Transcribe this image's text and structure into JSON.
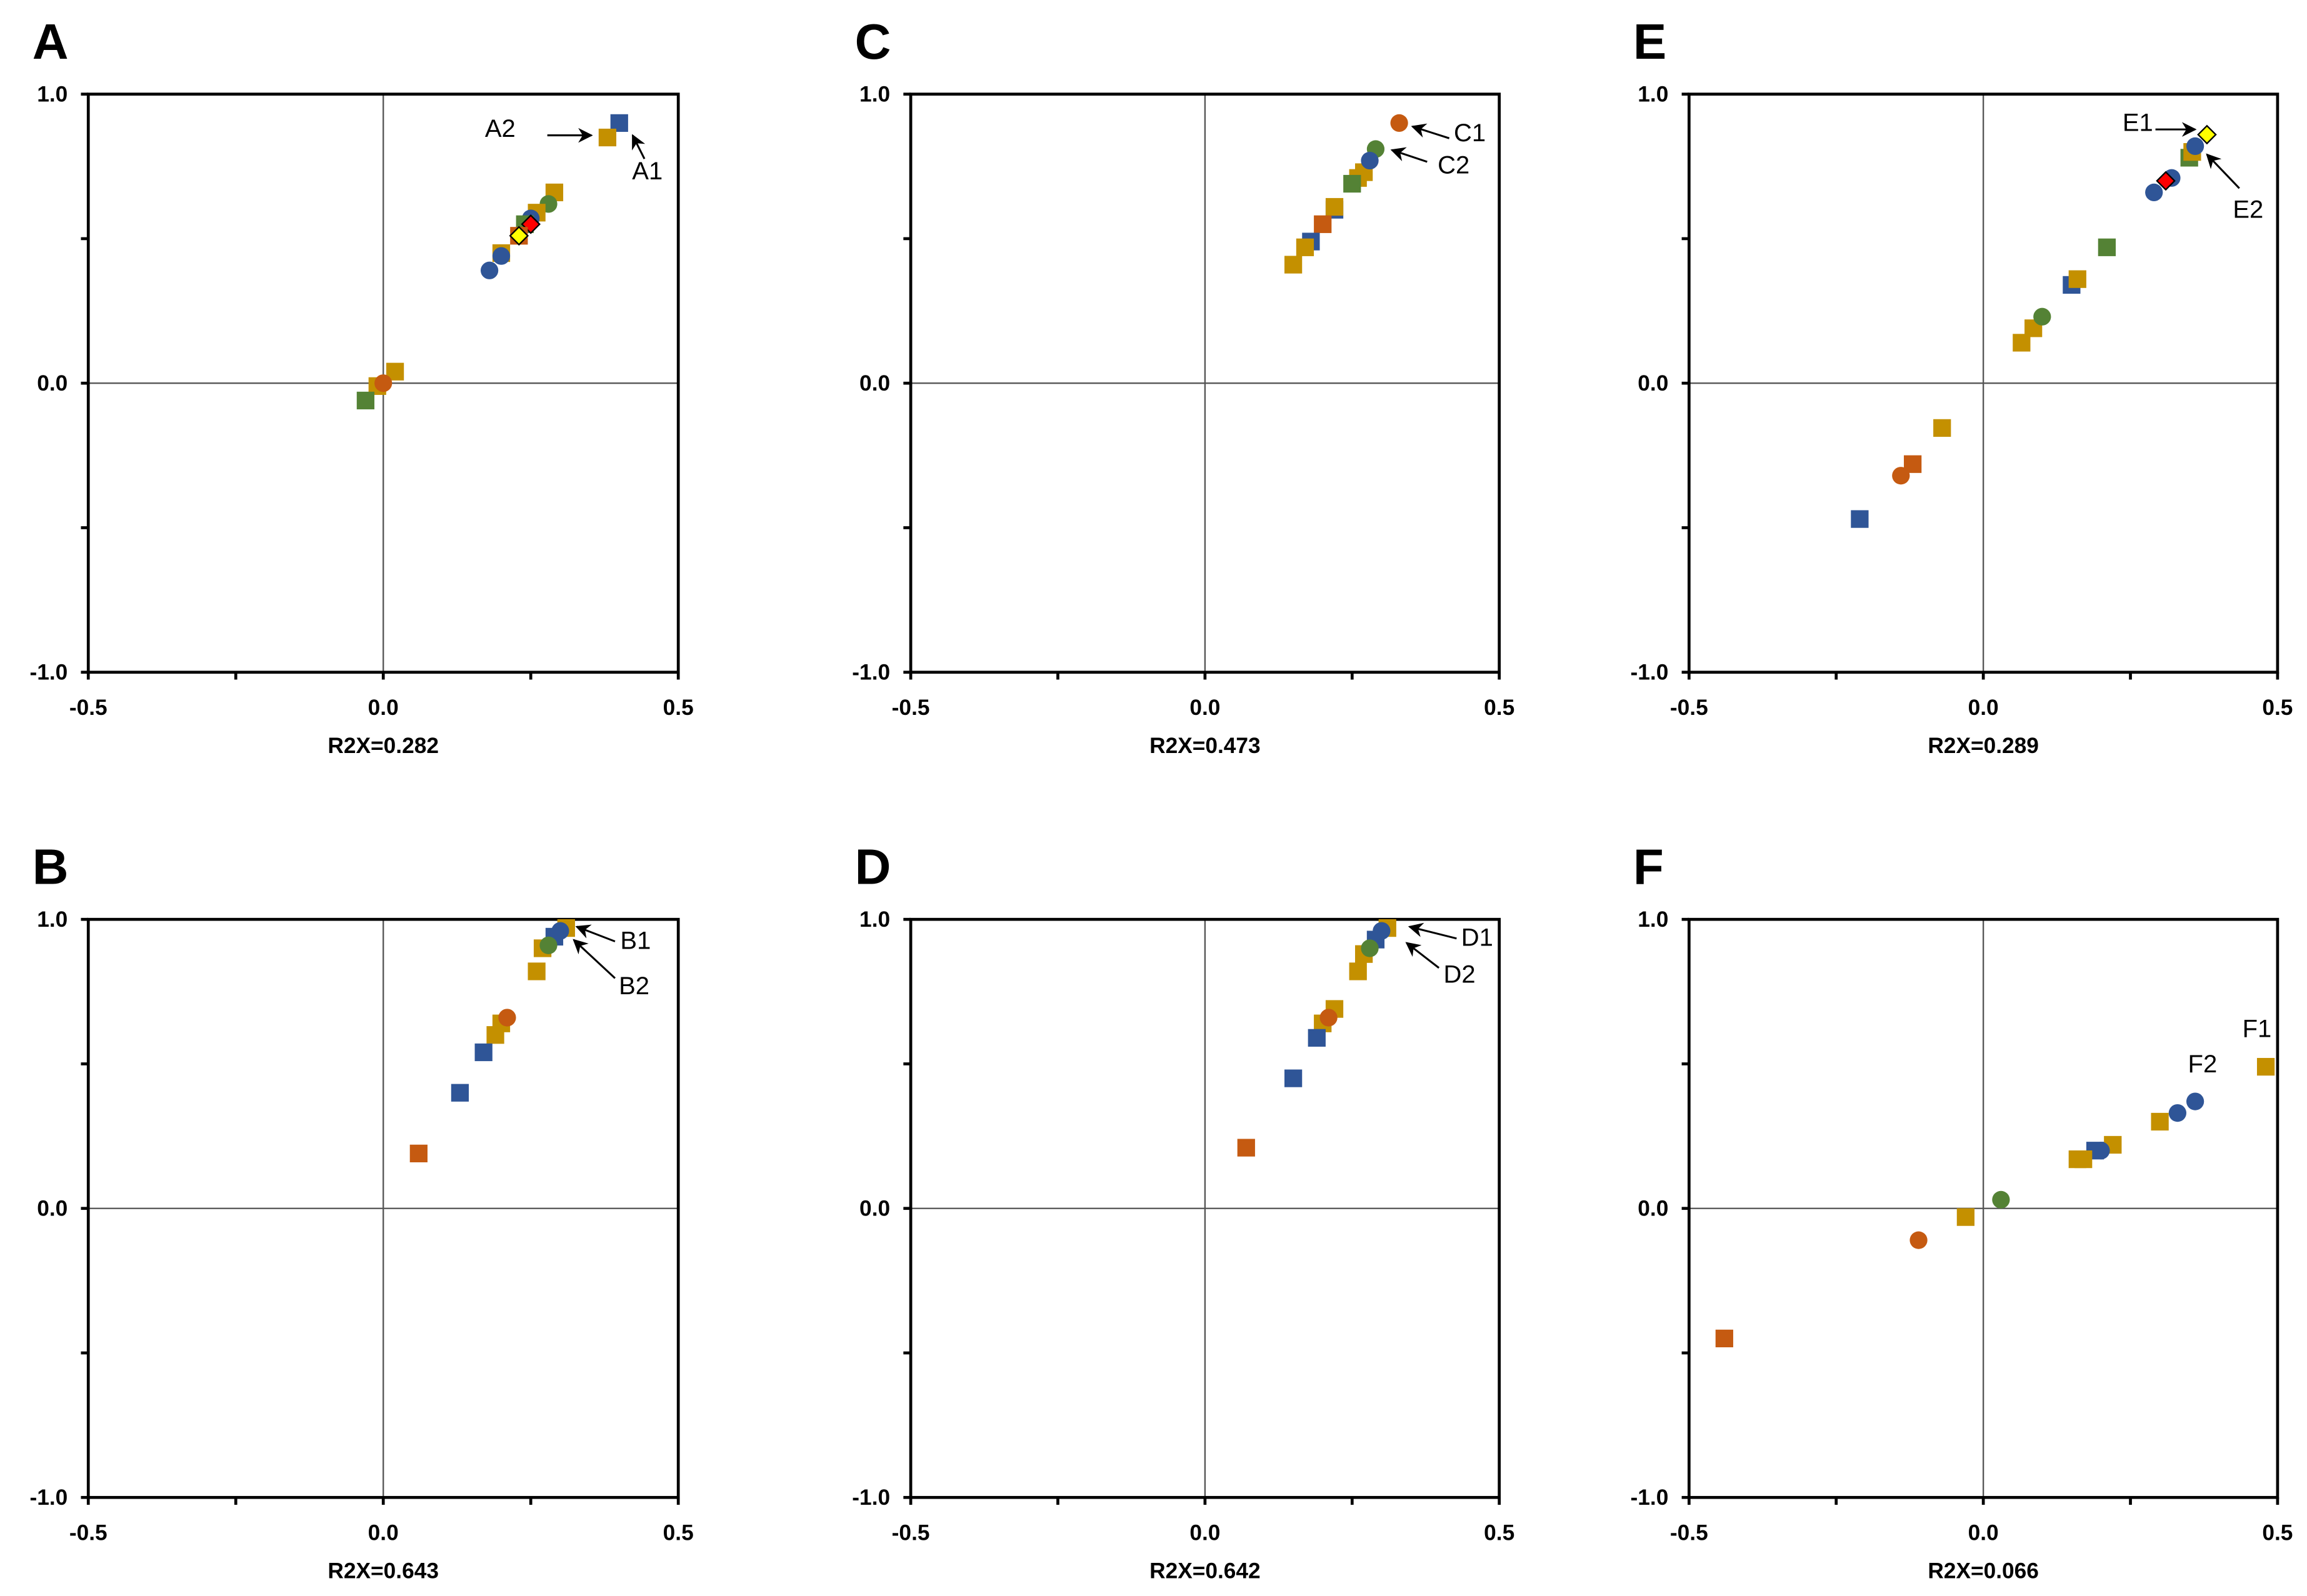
{
  "colors": {
    "blue": "#2F5597",
    "gold": "#C49000",
    "orange": "#C55A11",
    "green": "#548235",
    "red": "#FF0000",
    "yellow": "#FFFF00"
  },
  "chart_data": [
    {
      "type": "scatter",
      "panel": "A",
      "xlabel": "R2X=0.282",
      "xlim": [
        -0.5,
        0.5
      ],
      "ylim": [
        -1.0,
        1.0
      ],
      "xticks": [
        "-0.5",
        "0.0",
        "0.5"
      ],
      "yticks": [
        "1.0",
        "0.0",
        "-1.0"
      ],
      "points": [
        {
          "x": 0.4,
          "y": 0.9,
          "color": "blue",
          "shape": "square"
        },
        {
          "x": 0.38,
          "y": 0.85,
          "color": "gold",
          "shape": "square"
        },
        {
          "x": 0.29,
          "y": 0.66,
          "color": "gold",
          "shape": "square"
        },
        {
          "x": 0.28,
          "y": 0.62,
          "color": "green",
          "shape": "circle"
        },
        {
          "x": 0.26,
          "y": 0.59,
          "color": "gold",
          "shape": "square"
        },
        {
          "x": 0.25,
          "y": 0.57,
          "color": "blue",
          "shape": "circle"
        },
        {
          "x": 0.24,
          "y": 0.55,
          "color": "green",
          "shape": "square"
        },
        {
          "x": 0.25,
          "y": 0.55,
          "color": "red",
          "shape": "diamond"
        },
        {
          "x": 0.23,
          "y": 0.51,
          "color": "orange",
          "shape": "square"
        },
        {
          "x": 0.23,
          "y": 0.51,
          "color": "yellow",
          "shape": "diamond"
        },
        {
          "x": 0.2,
          "y": 0.45,
          "color": "gold",
          "shape": "square"
        },
        {
          "x": 0.2,
          "y": 0.44,
          "color": "blue",
          "shape": "circle"
        },
        {
          "x": 0.18,
          "y": 0.39,
          "color": "blue",
          "shape": "circle"
        },
        {
          "x": 0.02,
          "y": 0.04,
          "color": "gold",
          "shape": "square"
        },
        {
          "x": -0.01,
          "y": -0.01,
          "color": "gold",
          "shape": "square"
        },
        {
          "x": 0.0,
          "y": 0.0,
          "color": "orange",
          "shape": "circle"
        },
        {
          "x": -0.03,
          "y": -0.06,
          "color": "green",
          "shape": "square"
        }
      ],
      "annotations": [
        {
          "text": "A1"
        },
        {
          "text": "A2"
        }
      ]
    },
    {
      "type": "scatter",
      "panel": "B",
      "xlabel": "R2X=0.643",
      "xlim": [
        -0.5,
        0.5
      ],
      "ylim": [
        -1.0,
        1.0
      ],
      "xticks": [
        "-0.5",
        "0.0",
        "0.5"
      ],
      "yticks": [
        "1.0",
        "0.0",
        "-1.0"
      ],
      "points": [
        {
          "x": 0.31,
          "y": 0.97,
          "color": "gold",
          "shape": "square"
        },
        {
          "x": 0.3,
          "y": 0.96,
          "color": "blue",
          "shape": "circle"
        },
        {
          "x": 0.29,
          "y": 0.94,
          "color": "blue",
          "shape": "square"
        },
        {
          "x": 0.27,
          "y": 0.9,
          "color": "gold",
          "shape": "square"
        },
        {
          "x": 0.28,
          "y": 0.91,
          "color": "green",
          "shape": "circle"
        },
        {
          "x": 0.26,
          "y": 0.82,
          "color": "gold",
          "shape": "square"
        },
        {
          "x": 0.2,
          "y": 0.64,
          "color": "gold",
          "shape": "square"
        },
        {
          "x": 0.21,
          "y": 0.66,
          "color": "orange",
          "shape": "circle"
        },
        {
          "x": 0.19,
          "y": 0.6,
          "color": "gold",
          "shape": "square"
        },
        {
          "x": 0.17,
          "y": 0.54,
          "color": "blue",
          "shape": "square"
        },
        {
          "x": 0.13,
          "y": 0.4,
          "color": "blue",
          "shape": "square"
        },
        {
          "x": 0.06,
          "y": 0.19,
          "color": "orange",
          "shape": "square"
        }
      ],
      "annotations": [
        {
          "text": "B1"
        },
        {
          "text": "B2"
        }
      ]
    },
    {
      "type": "scatter",
      "panel": "C",
      "xlabel": "R2X=0.473",
      "xlim": [
        -0.5,
        0.5
      ],
      "ylim": [
        -1.0,
        1.0
      ],
      "xticks": [
        "-0.5",
        "0.0",
        "0.5"
      ],
      "yticks": [
        "1.0",
        "0.0",
        "-1.0"
      ],
      "points": [
        {
          "x": 0.33,
          "y": 0.9,
          "color": "orange",
          "shape": "circle"
        },
        {
          "x": 0.29,
          "y": 0.81,
          "color": "green",
          "shape": "circle"
        },
        {
          "x": 0.26,
          "y": 0.71,
          "color": "gold",
          "shape": "square"
        },
        {
          "x": 0.27,
          "y": 0.73,
          "color": "gold",
          "shape": "square"
        },
        {
          "x": 0.28,
          "y": 0.77,
          "color": "blue",
          "shape": "circle"
        },
        {
          "x": 0.25,
          "y": 0.69,
          "color": "green",
          "shape": "square"
        },
        {
          "x": 0.22,
          "y": 0.6,
          "color": "blue",
          "shape": "square"
        },
        {
          "x": 0.22,
          "y": 0.61,
          "color": "gold",
          "shape": "square"
        },
        {
          "x": 0.2,
          "y": 0.55,
          "color": "orange",
          "shape": "square"
        },
        {
          "x": 0.18,
          "y": 0.49,
          "color": "blue",
          "shape": "square"
        },
        {
          "x": 0.17,
          "y": 0.47,
          "color": "gold",
          "shape": "square"
        },
        {
          "x": 0.15,
          "y": 0.41,
          "color": "gold",
          "shape": "square"
        }
      ],
      "annotations": [
        {
          "text": "C1"
        },
        {
          "text": "C2"
        }
      ]
    },
    {
      "type": "scatter",
      "panel": "D",
      "xlabel": "R2X=0.642",
      "xlim": [
        -0.5,
        0.5
      ],
      "ylim": [
        -1.0,
        1.0
      ],
      "xticks": [
        "-0.5",
        "0.0",
        "0.5"
      ],
      "yticks": [
        "1.0",
        "0.0",
        "-1.0"
      ],
      "points": [
        {
          "x": 0.31,
          "y": 0.97,
          "color": "gold",
          "shape": "square"
        },
        {
          "x": 0.29,
          "y": 0.93,
          "color": "blue",
          "shape": "square"
        },
        {
          "x": 0.3,
          "y": 0.96,
          "color": "blue",
          "shape": "circle"
        },
        {
          "x": 0.27,
          "y": 0.88,
          "color": "gold",
          "shape": "square"
        },
        {
          "x": 0.28,
          "y": 0.9,
          "color": "green",
          "shape": "circle"
        },
        {
          "x": 0.26,
          "y": 0.82,
          "color": "gold",
          "shape": "square"
        },
        {
          "x": 0.22,
          "y": 0.69,
          "color": "gold",
          "shape": "square"
        },
        {
          "x": 0.2,
          "y": 0.64,
          "color": "gold",
          "shape": "square"
        },
        {
          "x": 0.21,
          "y": 0.66,
          "color": "orange",
          "shape": "circle"
        },
        {
          "x": 0.19,
          "y": 0.59,
          "color": "blue",
          "shape": "square"
        },
        {
          "x": 0.15,
          "y": 0.45,
          "color": "blue",
          "shape": "square"
        },
        {
          "x": 0.07,
          "y": 0.21,
          "color": "orange",
          "shape": "square"
        }
      ],
      "annotations": [
        {
          "text": "D1"
        },
        {
          "text": "D2"
        }
      ]
    },
    {
      "type": "scatter",
      "panel": "E",
      "xlabel": "R2X=0.289",
      "xlim": [
        -0.5,
        0.5
      ],
      "ylim": [
        -1.0,
        1.0
      ],
      "xticks": [
        "-0.5",
        "0.0",
        "0.5"
      ],
      "yticks": [
        "1.0",
        "0.0",
        "-1.0"
      ],
      "points": [
        {
          "x": 0.35,
          "y": 0.78,
          "color": "green",
          "shape": "square"
        },
        {
          "x": 0.355,
          "y": 0.8,
          "color": "gold",
          "shape": "square"
        },
        {
          "x": 0.36,
          "y": 0.82,
          "color": "blue",
          "shape": "circle"
        },
        {
          "x": 0.38,
          "y": 0.86,
          "color": "yellow",
          "shape": "diamond"
        },
        {
          "x": 0.32,
          "y": 0.71,
          "color": "blue",
          "shape": "circle"
        },
        {
          "x": 0.29,
          "y": 0.66,
          "color": "blue",
          "shape": "circle"
        },
        {
          "x": 0.31,
          "y": 0.7,
          "color": "red",
          "shape": "diamond"
        },
        {
          "x": 0.21,
          "y": 0.47,
          "color": "green",
          "shape": "square"
        },
        {
          "x": 0.15,
          "y": 0.34,
          "color": "blue",
          "shape": "square"
        },
        {
          "x": 0.16,
          "y": 0.36,
          "color": "gold",
          "shape": "square"
        },
        {
          "x": 0.065,
          "y": 0.14,
          "color": "gold",
          "shape": "square"
        },
        {
          "x": 0.085,
          "y": 0.19,
          "color": "gold",
          "shape": "square"
        },
        {
          "x": 0.1,
          "y": 0.23,
          "color": "green",
          "shape": "circle"
        },
        {
          "x": -0.07,
          "y": -0.155,
          "color": "gold",
          "shape": "square"
        },
        {
          "x": -0.12,
          "y": -0.28,
          "color": "orange",
          "shape": "square"
        },
        {
          "x": -0.14,
          "y": -0.32,
          "color": "orange",
          "shape": "circle"
        },
        {
          "x": -0.21,
          "y": -0.47,
          "color": "blue",
          "shape": "square"
        }
      ],
      "annotations": [
        {
          "text": "E1"
        },
        {
          "text": "E2"
        }
      ]
    },
    {
      "type": "scatter",
      "panel": "F",
      "xlabel": "R2X=0.066",
      "xlim": [
        -0.5,
        0.5
      ],
      "ylim": [
        -1.0,
        1.0
      ],
      "xticks": [
        "-0.5",
        "0.0",
        "0.5"
      ],
      "yticks": [
        "1.0",
        "0.0",
        "-1.0"
      ],
      "points": [
        {
          "x": 0.48,
          "y": 0.49,
          "color": "gold",
          "shape": "square"
        },
        {
          "x": 0.36,
          "y": 0.37,
          "color": "blue",
          "shape": "circle"
        },
        {
          "x": 0.33,
          "y": 0.33,
          "color": "blue",
          "shape": "circle"
        },
        {
          "x": 0.3,
          "y": 0.3,
          "color": "gold",
          "shape": "square"
        },
        {
          "x": 0.22,
          "y": 0.22,
          "color": "gold",
          "shape": "square"
        },
        {
          "x": 0.19,
          "y": 0.2,
          "color": "blue",
          "shape": "square"
        },
        {
          "x": 0.2,
          "y": 0.2,
          "color": "blue",
          "shape": "circle"
        },
        {
          "x": 0.16,
          "y": 0.17,
          "color": "gold",
          "shape": "square"
        },
        {
          "x": 0.17,
          "y": 0.17,
          "color": "gold",
          "shape": "square"
        },
        {
          "x": 0.03,
          "y": 0.03,
          "color": "green",
          "shape": "circle"
        },
        {
          "x": -0.03,
          "y": -0.03,
          "color": "gold",
          "shape": "square"
        },
        {
          "x": -0.11,
          "y": -0.11,
          "color": "orange",
          "shape": "circle"
        },
        {
          "x": -0.44,
          "y": -0.45,
          "color": "orange",
          "shape": "square"
        }
      ],
      "annotations": [
        {
          "text": "F1"
        },
        {
          "text": "F2"
        }
      ]
    }
  ]
}
